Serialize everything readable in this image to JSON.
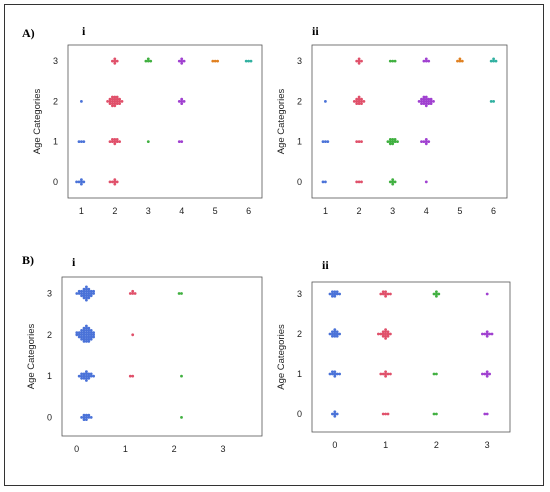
{
  "labels": {
    "sectionA": "A)",
    "sectionB": "B)"
  },
  "chart_data": [
    {
      "id": "A-i",
      "type": "scatter",
      "subtitle": "i",
      "ylabel": "Age Categories",
      "x_ticks": [
        1,
        2,
        3,
        4,
        5,
        6
      ],
      "y_ticks": [
        0,
        1,
        2,
        3
      ],
      "xlim": [
        0.6,
        6.4
      ],
      "ylim": [
        -0.4,
        3.4
      ],
      "points": [
        {
          "x": 1,
          "y": 0,
          "n": 6,
          "color": "#4a72d8"
        },
        {
          "x": 2,
          "y": 0,
          "n": 6,
          "color": "#e0506a"
        },
        {
          "x": 1,
          "y": 1,
          "n": 3,
          "color": "#4a72d8"
        },
        {
          "x": 2,
          "y": 1,
          "n": 9,
          "color": "#e0506a"
        },
        {
          "x": 3,
          "y": 1,
          "n": 1,
          "color": "#40b040"
        },
        {
          "x": 4,
          "y": 1,
          "n": 2,
          "color": "#a040d0"
        },
        {
          "x": 1,
          "y": 2,
          "n": 1,
          "color": "#4a72d8"
        },
        {
          "x": 2,
          "y": 2,
          "n": 22,
          "color": "#e0506a"
        },
        {
          "x": 4,
          "y": 2,
          "n": 5,
          "color": "#a040d0"
        },
        {
          "x": 2,
          "y": 3,
          "n": 5,
          "color": "#e0506a"
        },
        {
          "x": 3,
          "y": 3,
          "n": 4,
          "color": "#40b040"
        },
        {
          "x": 4,
          "y": 3,
          "n": 5,
          "color": "#a040d0"
        },
        {
          "x": 5,
          "y": 3,
          "n": 3,
          "color": "#e08020"
        },
        {
          "x": 6,
          "y": 3,
          "n": 3,
          "color": "#30b0a0"
        }
      ]
    },
    {
      "id": "A-ii",
      "type": "scatter",
      "subtitle": "ii",
      "ylabel": "Age Categories",
      "x_ticks": [
        1,
        2,
        3,
        4,
        5,
        6
      ],
      "y_ticks": [
        0,
        1,
        2,
        3
      ],
      "xlim": [
        0.6,
        6.4
      ],
      "ylim": [
        -0.4,
        3.4
      ],
      "points": [
        {
          "x": 1,
          "y": 0,
          "n": 2,
          "color": "#4a72d8"
        },
        {
          "x": 2,
          "y": 0,
          "n": 3,
          "color": "#e0506a"
        },
        {
          "x": 3,
          "y": 0,
          "n": 5,
          "color": "#40b040"
        },
        {
          "x": 4,
          "y": 0,
          "n": 1,
          "color": "#a040d0"
        },
        {
          "x": 1,
          "y": 1,
          "n": 3,
          "color": "#4a72d8"
        },
        {
          "x": 2,
          "y": 1,
          "n": 3,
          "color": "#e0506a"
        },
        {
          "x": 3,
          "y": 1,
          "n": 10,
          "color": "#40b040"
        },
        {
          "x": 4,
          "y": 1,
          "n": 6,
          "color": "#a040d0"
        },
        {
          "x": 1,
          "y": 2,
          "n": 1,
          "color": "#4a72d8"
        },
        {
          "x": 2,
          "y": 2,
          "n": 12,
          "color": "#e0506a"
        },
        {
          "x": 4,
          "y": 2,
          "n": 20,
          "color": "#a040d0"
        },
        {
          "x": 6,
          "y": 2,
          "n": 2,
          "color": "#30b0a0"
        },
        {
          "x": 2,
          "y": 3,
          "n": 5,
          "color": "#e0506a"
        },
        {
          "x": 3,
          "y": 3,
          "n": 3,
          "color": "#40b040"
        },
        {
          "x": 4,
          "y": 3,
          "n": 4,
          "color": "#a040d0"
        },
        {
          "x": 5,
          "y": 3,
          "n": 4,
          "color": "#e08020"
        },
        {
          "x": 6,
          "y": 3,
          "n": 4,
          "color": "#30b0a0"
        }
      ]
    },
    {
      "id": "B-i",
      "type": "scatter",
      "subtitle": "i",
      "ylabel": "Age Categories",
      "x_ticks": [
        0,
        1,
        2,
        3
      ],
      "y_ticks": [
        0,
        1,
        2,
        3
      ],
      "xlim": [
        -0.3,
        3.8
      ],
      "ylim": [
        -0.45,
        3.4
      ],
      "points": [
        {
          "x": 0.2,
          "y": 0,
          "n": 10,
          "color": "#4a72d8"
        },
        {
          "x": 0.2,
          "y": 1,
          "n": 18,
          "color": "#4a72d8"
        },
        {
          "x": 0.2,
          "y": 2,
          "n": 40,
          "color": "#4a72d8"
        },
        {
          "x": 0.2,
          "y": 3,
          "n": 28,
          "color": "#4a72d8"
        },
        {
          "x": 1.15,
          "y": 1,
          "n": 2,
          "color": "#e0506a"
        },
        {
          "x": 1.15,
          "y": 2,
          "n": 1,
          "color": "#e0506a"
        },
        {
          "x": 1.15,
          "y": 3,
          "n": 4,
          "color": "#e0506a"
        },
        {
          "x": 2.15,
          "y": 0,
          "n": 1,
          "color": "#40b040"
        },
        {
          "x": 2.15,
          "y": 1,
          "n": 1,
          "color": "#40b040"
        },
        {
          "x": 2.15,
          "y": 3,
          "n": 2,
          "color": "#40b040"
        }
      ]
    },
    {
      "id": "B-ii",
      "type": "scatter",
      "subtitle": "ii",
      "ylabel": "Age Categories",
      "x_ticks": [
        0,
        1,
        2,
        3
      ],
      "y_ticks": [
        0,
        1,
        2,
        3
      ],
      "xlim": [
        -0.45,
        3.45
      ],
      "ylim": [
        -0.45,
        3.3
      ],
      "points": [
        {
          "x": 0,
          "y": 0,
          "n": 5,
          "color": "#4a72d8"
        },
        {
          "x": 0,
          "y": 1,
          "n": 8,
          "color": "#4a72d8"
        },
        {
          "x": 0,
          "y": 2,
          "n": 12,
          "color": "#4a72d8"
        },
        {
          "x": 0,
          "y": 3,
          "n": 10,
          "color": "#4a72d8"
        },
        {
          "x": 1,
          "y": 0,
          "n": 3,
          "color": "#e0506a"
        },
        {
          "x": 1,
          "y": 1,
          "n": 7,
          "color": "#e0506a"
        },
        {
          "x": 1,
          "y": 2,
          "n": 14,
          "color": "#e0506a"
        },
        {
          "x": 1,
          "y": 3,
          "n": 8,
          "color": "#e0506a"
        },
        {
          "x": 2,
          "y": 0,
          "n": 2,
          "color": "#40b040"
        },
        {
          "x": 2,
          "y": 1,
          "n": 2,
          "color": "#40b040"
        },
        {
          "x": 2,
          "y": 3,
          "n": 5,
          "color": "#40b040"
        },
        {
          "x": 3,
          "y": 0,
          "n": 2,
          "color": "#a040d0"
        },
        {
          "x": 3,
          "y": 1,
          "n": 6,
          "color": "#a040d0"
        },
        {
          "x": 3,
          "y": 2,
          "n": 7,
          "color": "#a040d0"
        },
        {
          "x": 3,
          "y": 3,
          "n": 1,
          "color": "#a040d0"
        }
      ]
    }
  ]
}
